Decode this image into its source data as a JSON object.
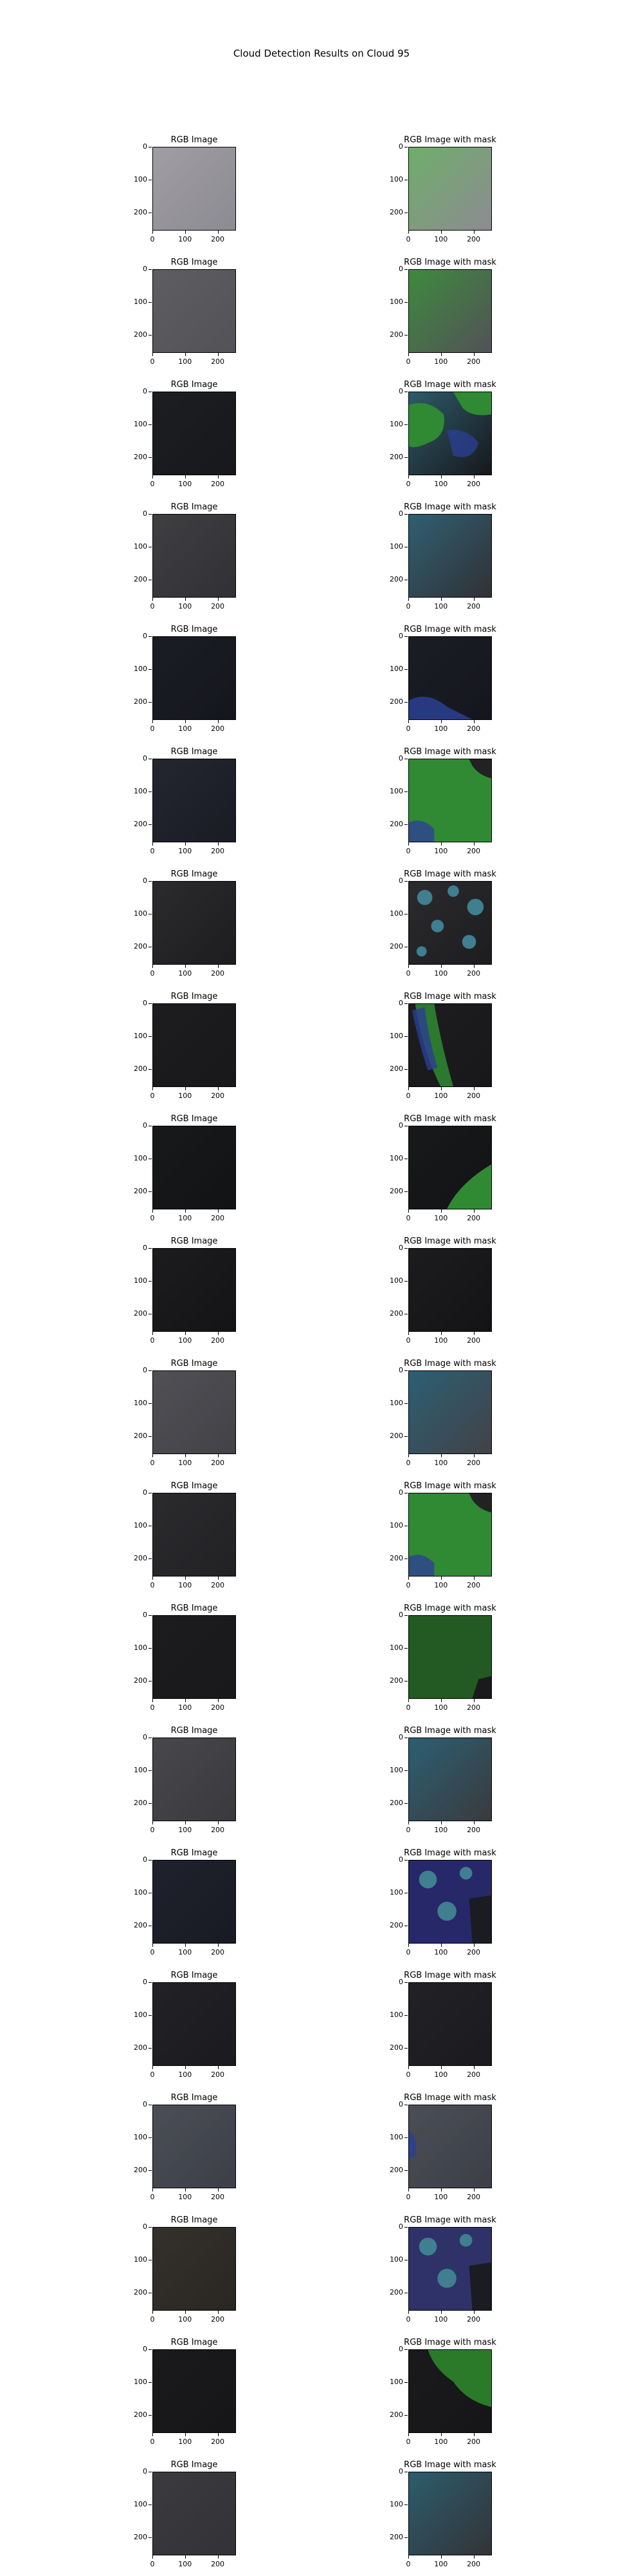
{
  "title": "Cloud Detection Results on Cloud 95",
  "left_title": "RGB Image",
  "right_title": "RGB Image with mask",
  "axis": {
    "xticks": [
      "0",
      "100",
      "200"
    ],
    "yticks": [
      "0",
      "100",
      "200"
    ],
    "range": [
      0,
      256
    ]
  },
  "rows": [
    {
      "rgb": "#a09ea4",
      "rgb2": "#8d8b92",
      "mask": "#6fae6a",
      "overlay": "full"
    },
    {
      "rgb": "#5e5e62",
      "rgb2": "#525257",
      "mask": "#3e8a3e",
      "overlay": "full"
    },
    {
      "rgb": "#1d1e22",
      "rgb2": "#17181b",
      "mask": "#2e5a6a",
      "overlay": "green-blobs"
    },
    {
      "rgb": "#3f3f42",
      "rgb2": "#313135",
      "mask": "#2f5f72",
      "overlay": "full"
    },
    {
      "rgb": "#1b1d26",
      "rgb2": "#15161d",
      "mask": "#1b1d26",
      "overlay": "bottom-blue"
    },
    {
      "rgb": "#232630",
      "rgb2": "#1a1c24",
      "mask": "#2a6a2a",
      "overlay": "green-main"
    },
    {
      "rgb": "#2b2b2e",
      "rgb2": "#1d1d20",
      "mask": "#2b2b2e",
      "overlay": "cyan-spots"
    },
    {
      "rgb": "#1d1d20",
      "rgb2": "#18181a",
      "mask": "#1d1d20",
      "overlay": "diagonal"
    },
    {
      "rgb": "#18191b",
      "rgb2": "#121314",
      "mask": "#18191b",
      "overlay": "corner-green"
    },
    {
      "rgb": "#1c1c1f",
      "rgb2": "#141416",
      "mask": "#1c1c1f",
      "overlay": "none"
    },
    {
      "rgb": "#505055",
      "rgb2": "#424247",
      "mask": "#2c5f74",
      "overlay": "full"
    },
    {
      "rgb": "#2b2a2d",
      "rgb2": "#222124",
      "mask": "#2e7a3a",
      "overlay": "green-main"
    },
    {
      "rgb": "#1c1c1e",
      "rgb2": "#19191b",
      "mask": "#235a23",
      "overlay": "full-dark-edge"
    },
    {
      "rgb": "#48484c",
      "rgb2": "#3a3a3e",
      "mask": "#2c5f72",
      "overlay": "full"
    },
    {
      "rgb": "#1f222d",
      "rgb2": "#181a23",
      "mask": "#26286a",
      "overlay": "blue-cyan"
    },
    {
      "rgb": "#222226",
      "rgb2": "#1b1b1f",
      "mask": "#222226",
      "overlay": "none"
    },
    {
      "rgb": "#4b4e56",
      "rgb2": "#3c3f47",
      "mask": "#4b4e56",
      "overlay": "left-blue"
    },
    {
      "rgb": "#34302c",
      "rgb2": "#2a2622",
      "mask": "#2f3268",
      "overlay": "blue-cyan"
    },
    {
      "rgb": "#1a1a1c",
      "rgb2": "#161618",
      "mask": "#1a1a1c",
      "overlay": "green-top"
    },
    {
      "rgb": "#3b3b3f",
      "rgb2": "#333337",
      "mask": "#2c5d6d",
      "overlay": "full"
    }
  ]
}
